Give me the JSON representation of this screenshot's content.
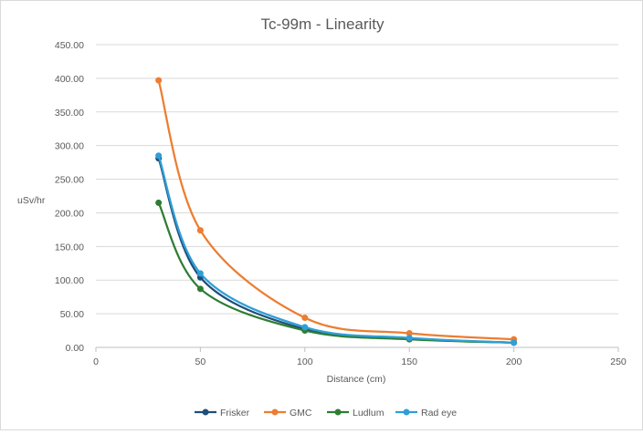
{
  "chart_data": {
    "type": "scatter",
    "title": "Tc-99m - Linearity",
    "xlabel": "Distance (cm)",
    "ylabel": "uSv/hr",
    "xlim": [
      0,
      250
    ],
    "ylim": [
      0,
      450
    ],
    "x_ticks": [
      "0",
      "50",
      "100",
      "150",
      "200",
      "250"
    ],
    "y_ticks": [
      "0.00",
      "50.00",
      "100.00",
      "150.00",
      "200.00",
      "250.00",
      "300.00",
      "350.00",
      "400.00",
      "450.00"
    ],
    "grid": "horizontal",
    "legend_position": "bottom",
    "smooth_lines": true,
    "series": [
      {
        "name": "Frisker",
        "color": "#1f4e79",
        "x": [
          30,
          50,
          100,
          150,
          200
        ],
        "y": [
          281,
          104,
          27,
          13,
          7
        ]
      },
      {
        "name": "GMC",
        "color": "#ed7d31",
        "x": [
          30,
          50,
          100,
          150,
          200
        ],
        "y": [
          397,
          174,
          44,
          21,
          12
        ]
      },
      {
        "name": "Ludlum",
        "color": "#2e7d32",
        "x": [
          30,
          50,
          100,
          150,
          200
        ],
        "y": [
          215,
          87,
          25,
          12,
          7
        ]
      },
      {
        "name": "Rad eye",
        "color": "#2e9fd8",
        "x": [
          30,
          50,
          100,
          150,
          200
        ],
        "y": [
          285,
          110,
          30,
          14,
          7
        ]
      }
    ]
  }
}
